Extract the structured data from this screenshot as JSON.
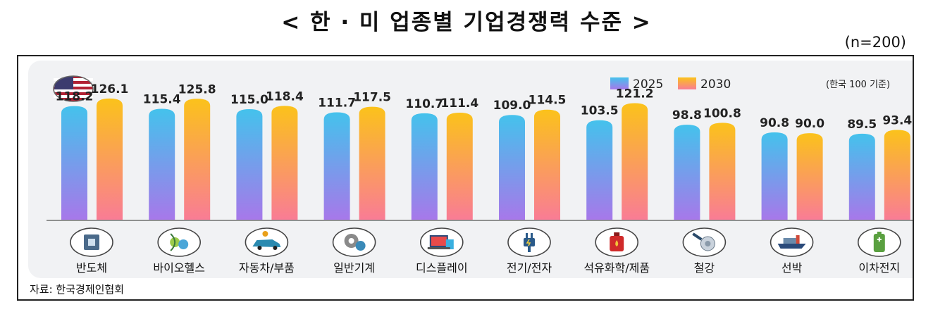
{
  "title": "< 한 · 미 업종별 기업경쟁력 수준 >",
  "sample_note": "(n=200)",
  "unit_note": "(한국 100 기준)",
  "source": "자료: 한국경제인협회",
  "colors": {
    "s2025_top": "#44c2ec",
    "s2025_bottom": "#a778ea",
    "s2030_top": "#fbc21b",
    "s2030_bottom": "#f97c95",
    "axis": "#555555"
  },
  "chart_data": {
    "type": "bar",
    "categories": [
      "반도체",
      "바이오헬스",
      "자동차/부품",
      "일반기계",
      "디스플레이",
      "전기/전자",
      "석유화학/제품",
      "철강",
      "선박",
      "이차전지"
    ],
    "icons": [
      "semiconductor-chip-icon",
      "dna-biohealth-icon",
      "car-parts-icon",
      "gear-machinery-icon",
      "display-devices-icon",
      "electric-plug-icon",
      "oil-can-icon",
      "steel-coil-icon",
      "ship-icon",
      "battery-icon"
    ],
    "series": [
      {
        "name": "2025",
        "values": [
          118.2,
          115.4,
          115.0,
          111.7,
          110.7,
          109.0,
          103.5,
          98.8,
          90.8,
          89.5
        ]
      },
      {
        "name": "2030",
        "values": [
          126.1,
          125.8,
          118.4,
          117.5,
          111.4,
          114.5,
          121.2,
          100.8,
          90.0,
          93.4
        ]
      }
    ],
    "value_labels": [
      [
        "118.2",
        "115.4",
        "115.0",
        "111.7",
        "110.7",
        "109.0",
        "103.5",
        "98.8",
        "90.8",
        "89.5"
      ],
      [
        "126.1",
        "125.8",
        "118.4",
        "117.5",
        "111.4",
        "114.5",
        "121.2",
        "100.8",
        "90.0",
        "93.4"
      ]
    ],
    "legend_position": "top-right"
  }
}
